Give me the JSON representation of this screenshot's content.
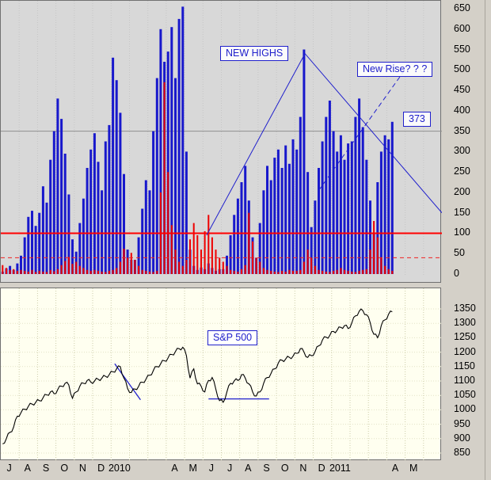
{
  "annotations": {
    "new_highs": "NEW HIGHS",
    "new_rise": "New Rise? ? ?",
    "flag_373": "373",
    "sp500": "S&P 500"
  },
  "x_axis": {
    "labels": [
      {
        "text": "J",
        "month_index": 0
      },
      {
        "text": "A",
        "month_index": 1
      },
      {
        "text": "S",
        "month_index": 2
      },
      {
        "text": "O",
        "month_index": 3
      },
      {
        "text": "N",
        "month_index": 4
      },
      {
        "text": "D",
        "month_index": 5
      },
      {
        "text": "2010",
        "month_index": 6
      },
      {
        "text": "A",
        "month_index": 9
      },
      {
        "text": "M",
        "month_index": 10
      },
      {
        "text": "J",
        "month_index": 11
      },
      {
        "text": "J",
        "month_index": 12
      },
      {
        "text": "A",
        "month_index": 13
      },
      {
        "text": "S",
        "month_index": 14
      },
      {
        "text": "O",
        "month_index": 15
      },
      {
        "text": "N",
        "month_index": 16
      },
      {
        "text": "D",
        "month_index": 17
      },
      {
        "text": "2011",
        "month_index": 18
      },
      {
        "text": "A",
        "month_index": 21
      },
      {
        "text": "M",
        "month_index": 22
      }
    ]
  },
  "chart_data": [
    {
      "type": "bar",
      "panel": "top",
      "title": "NEW HIGHS",
      "x_description": "Jul 2009 - Apr 2011, about 5 samples per month, estimated from pixels",
      "months_span": 24,
      "samples_per_month": 5,
      "ylim": [
        0,
        650
      ],
      "y_ticks": [
        650,
        600,
        550,
        500,
        450,
        400,
        350,
        300,
        250,
        200,
        150,
        100,
        50,
        0
      ],
      "reference_lines": {
        "solid_red": 100,
        "dashed_red": 40,
        "solid_gray": 350
      },
      "series": [
        {
          "name": "new-highs",
          "color": "#1818cc",
          "values": [
            6,
            14,
            20,
            10,
            26,
            45,
            90,
            140,
            155,
            118,
            150,
            215,
            175,
            280,
            350,
            430,
            380,
            295,
            195,
            85,
            55,
            125,
            185,
            260,
            305,
            345,
            275,
            205,
            325,
            365,
            530,
            475,
            395,
            245,
            60,
            35,
            35,
            90,
            160,
            230,
            205,
            350,
            480,
            600,
            520,
            545,
            605,
            480,
            625,
            655,
            300,
            60,
            20,
            10,
            16,
            12,
            26,
            15,
            8,
            12,
            12,
            45,
            95,
            145,
            185,
            225,
            265,
            180,
            90,
            40,
            125,
            205,
            265,
            230,
            285,
            305,
            260,
            315,
            270,
            330,
            305,
            385,
            550,
            250,
            115,
            180,
            260,
            325,
            385,
            425,
            350,
            300,
            340,
            280,
            320,
            325,
            385,
            430,
            360,
            280,
            180,
            100,
            225,
            300,
            340,
            330,
            373
          ]
        },
        {
          "name": "new-lows",
          "color": "#ee0000",
          "values": [
            22,
            15,
            10,
            12,
            8,
            10,
            8,
            6,
            10,
            5,
            8,
            6,
            5,
            10,
            7,
            12,
            22,
            32,
            42,
            25,
            30,
            20,
            15,
            10,
            8,
            10,
            8,
            6,
            5,
            8,
            10,
            15,
            30,
            62,
            40,
            52,
            35,
            20,
            10,
            8,
            6,
            5,
            8,
            200,
            470,
            250,
            120,
            60,
            30,
            20,
            35,
            85,
            125,
            95,
            60,
            105,
            145,
            90,
            60,
            40,
            30,
            20,
            10,
            8,
            6,
            12,
            22,
            150,
            80,
            40,
            30,
            15,
            10,
            8,
            6,
            5,
            8,
            6,
            10,
            8,
            8,
            10,
            30,
            60,
            40,
            20,
            10,
            8,
            6,
            5,
            8,
            10,
            15,
            10,
            8,
            6,
            5,
            8,
            10,
            12,
            60,
            130,
            90,
            40,
            20,
            12,
            8
          ]
        }
      ],
      "trendlines": [
        {
          "name": "tent",
          "style": "solid",
          "color": "#2020cc",
          "points_month_value": [
            [
              11.2,
              95
            ],
            [
              16.55,
              540
            ],
            [
              24,
              150
            ]
          ]
        },
        {
          "name": "new-rise-dashed",
          "style": "dashed",
          "color": "#2020cc",
          "points_month_value": [
            [
              17.3,
              205
            ],
            [
              21.9,
              495
            ]
          ]
        }
      ],
      "annotations": [
        "NEW HIGHS",
        "New Rise? ? ?",
        "373"
      ],
      "last_value": 373
    },
    {
      "type": "line",
      "panel": "bottom",
      "name": "S&P 500",
      "color": "#000000",
      "months_span": 24,
      "samples_per_month": 5,
      "ylim": [
        840,
        1360
      ],
      "y_ticks": [
        1350,
        1300,
        1250,
        1200,
        1150,
        1100,
        1050,
        1000,
        950,
        900,
        850
      ],
      "values": [
        882,
        900,
        922,
        940,
        978,
        990,
        1002,
        1012,
        1020,
        1026,
        1032,
        1042,
        1052,
        1062,
        1056,
        1070,
        1082,
        1092,
        1086,
        1040,
        1062,
        1082,
        1092,
        1102,
        1096,
        1100,
        1106,
        1110,
        1116,
        1122,
        1132,
        1142,
        1150,
        1110,
        1074,
        1060,
        1072,
        1082,
        1096,
        1106,
        1120,
        1136,
        1150,
        1160,
        1170,
        1180,
        1192,
        1202,
        1212,
        1217,
        1188,
        1110,
        1142,
        1090,
        1082,
        1062,
        1102,
        1112,
        1072,
        1032,
        1026,
        1062,
        1092,
        1100,
        1102,
        1122,
        1110,
        1090,
        1062,
        1048,
        1062,
        1092,
        1112,
        1126,
        1142,
        1162,
        1172,
        1176,
        1182,
        1186,
        1196,
        1212,
        1200,
        1182,
        1188,
        1202,
        1222,
        1242,
        1252,
        1258,
        1272,
        1276,
        1286,
        1292,
        1282,
        1302,
        1326,
        1342,
        1344,
        1330,
        1302,
        1262,
        1250,
        1292,
        1312,
        1332,
        1340
      ],
      "trendlines": [
        {
          "name": "jan-2010-downtrend",
          "style": "solid",
          "color": "#2020cc",
          "points_month_value": [
            [
              6.2,
              1160
            ],
            [
              7.6,
              1035
            ]
          ]
        },
        {
          "name": "summer-2010-support",
          "style": "solid",
          "color": "#2020cc",
          "points_month_value": [
            [
              11.3,
              1038
            ],
            [
              14.6,
              1038
            ]
          ]
        }
      ]
    }
  ]
}
